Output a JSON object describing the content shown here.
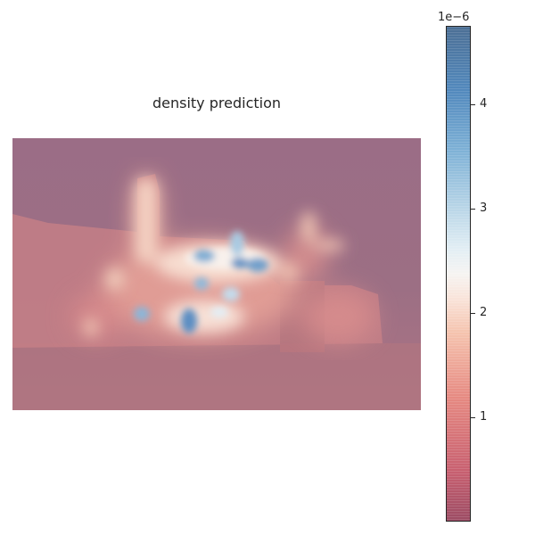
{
  "chart_data": {
    "type": "heatmap",
    "title": "density prediction",
    "xlabel": "",
    "ylabel": "",
    "colorbar": {
      "exponent_label": "1e−6",
      "range": [
        0,
        4.75
      ],
      "ticks": [
        {
          "value": 1,
          "label": "1"
        },
        {
          "value": 2,
          "label": "2"
        },
        {
          "value": 3,
          "label": "3"
        },
        {
          "value": 4,
          "label": "4"
        }
      ],
      "colormap": "RdBu",
      "colors": {
        "low": "#9c4c64",
        "mid": "#f6f4f2",
        "high": "#4c6f95"
      }
    },
    "axes_visible": false,
    "overlay": "density heatmap over photograph of building",
    "background_tint": "#9a6f86"
  }
}
